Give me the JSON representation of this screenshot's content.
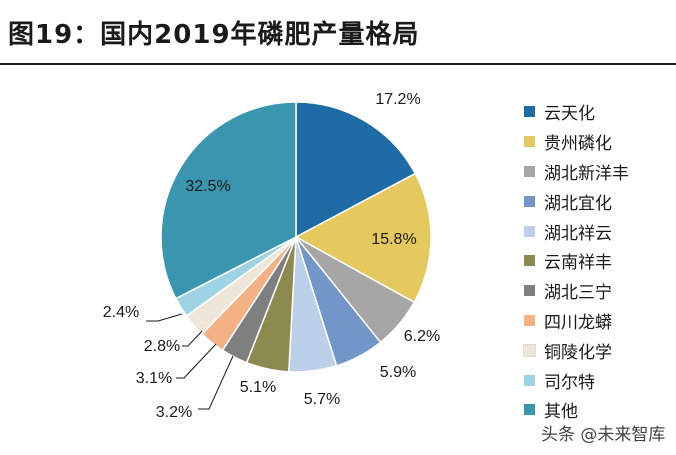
{
  "title": "图19：国内2019年磷肥产量格局",
  "watermark": "头条 @未来智库",
  "chart_data": {
    "type": "pie",
    "title": "国内2019年磷肥产量格局",
    "unit": "%",
    "start_angle_deg": 90,
    "direction": "clockwise",
    "legend_position": "right",
    "slices": [
      {
        "name": "云天化",
        "value": 17.2,
        "label": "17.2%",
        "color": "#1F6BA5"
      },
      {
        "name": "贵州磷化",
        "value": 15.8,
        "label": "15.8%",
        "color": "#E6C95E"
      },
      {
        "name": "湖北新洋丰",
        "value": 6.2,
        "label": "6.2%",
        "color": "#A6A6A6"
      },
      {
        "name": "湖北宜化",
        "value": 5.9,
        "label": "5.9%",
        "color": "#7396C8"
      },
      {
        "name": "湖北祥云",
        "value": 5.7,
        "label": "5.7%",
        "color": "#BCCFE9"
      },
      {
        "name": "云南祥丰",
        "value": 5.1,
        "label": "5.1%",
        "color": "#8C8A4F"
      },
      {
        "name": "湖北三宁",
        "value": 3.2,
        "label": "3.2%",
        "color": "#7F7F7F"
      },
      {
        "name": "四川龙蟒",
        "value": 3.1,
        "label": "3.1%",
        "color": "#F4B183"
      },
      {
        "name": "铜陵化学",
        "value": 2.8,
        "label": "2.8%",
        "color": "#EEE6D8"
      },
      {
        "name": "司尔特",
        "value": 2.4,
        "label": "2.4%",
        "color": "#9ED3E3"
      },
      {
        "name": "其他",
        "value": 32.5,
        "label": "32.5%",
        "color": "#3A96AE"
      }
    ]
  }
}
